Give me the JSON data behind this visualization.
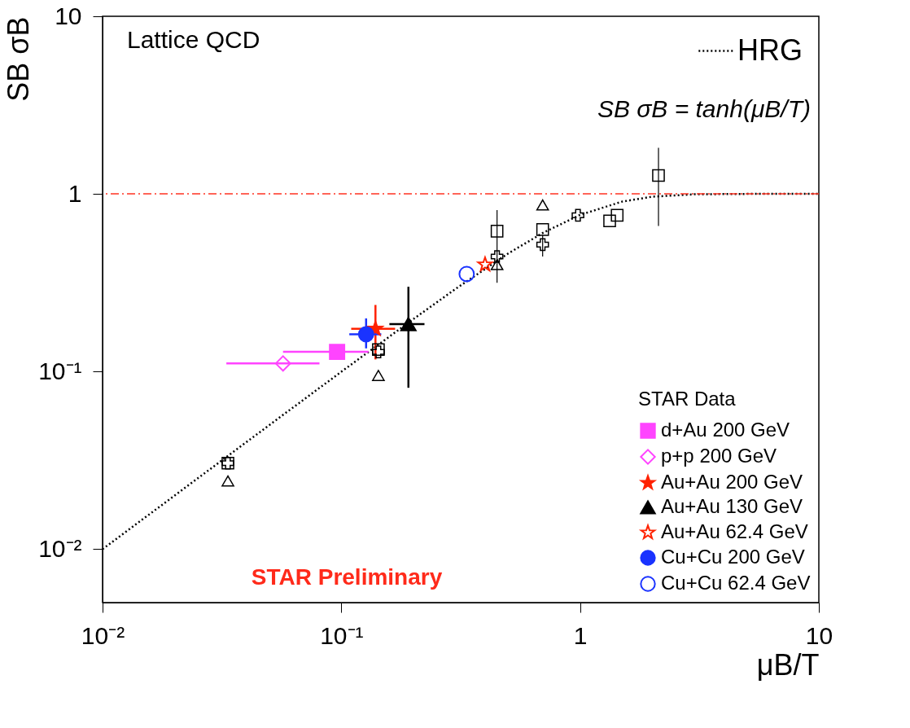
{
  "chart_data": {
    "type": "scatter",
    "xlabel": "μB/T",
    "ylabel": "SB σB",
    "legend_title": "STAR Data",
    "legend": "bottom right",
    "log": "xy",
    "grid": false,
    "xlim": [
      0.01,
      10
    ],
    "ylim": [
      0.005,
      10
    ],
    "xticks": [
      {
        "value": 0.01,
        "label": "10⁻²"
      },
      {
        "value": 0.1,
        "label": "10⁻¹"
      },
      1,
      10
    ],
    "yticks": [
      {
        "value": 0.01,
        "label": "10⁻²"
      },
      {
        "value": 0.1,
        "label": "10⁻¹"
      },
      1,
      10
    ],
    "annotations": [
      "Lattice QCD",
      "SB σB = tanh(μB/T)",
      "STAR Preliminary"
    ],
    "ref_lines": [
      {
        "axis": "y",
        "value": 1,
        "color": "#ff3322",
        "line_style": "dashed"
      }
    ],
    "series": [
      {
        "name": "HRG",
        "type": "line",
        "color": "#000000",
        "line_style": "dotted",
        "marker": "none",
        "x": [
          0.01,
          0.02,
          0.05,
          0.1,
          0.2,
          0.3,
          0.5,
          0.7,
          1,
          1.5,
          2,
          3,
          5,
          10
        ],
        "values": [
          0.01,
          0.02,
          0.05,
          0.0997,
          0.197,
          0.291,
          0.462,
          0.604,
          0.762,
          0.905,
          0.964,
          0.995,
          1.0,
          1.0
        ]
      },
      {
        "color": "#000000",
        "marker": "cross",
        "x": [
          0.0335,
          0.143,
          0.449,
          0.697,
          0.98
        ],
        "values": [
          0.0305,
          0.129,
          0.444,
          0.518,
          0.758
        ],
        "errors": [
          null,
          null,
          null,
          [
            0.444,
            0.586
          ],
          null
        ]
      },
      {
        "color": "#000000",
        "marker": "square",
        "x": [
          0.0335,
          0.143,
          0.449,
          0.697,
          1.33,
          1.43,
          2.13
        ],
        "values": [
          0.0305,
          0.133,
          0.617,
          0.63,
          0.705,
          0.758,
          1.27
        ],
        "errors": [
          null,
          null,
          [
            0.316,
            0.81
          ],
          null,
          null,
          null,
          [
            0.66,
            1.82
          ]
        ]
      },
      {
        "color": "#000000",
        "marker": "triangle",
        "x": [
          0.0335,
          0.143,
          0.449,
          0.697
        ],
        "values": [
          0.0242,
          0.095,
          0.4,
          0.866
        ]
      },
      {
        "name": "d+Au 200 GeV",
        "color": "#ff44ff",
        "marker": "square",
        "x": [
          0.096
        ],
        "values": [
          0.129
        ],
        "xerrors": [
          [
            0.057,
            0.13
          ]
        ]
      },
      {
        "name": "p+p 200 GeV",
        "color": "#ff44ff",
        "marker": "diamond",
        "x": [
          0.057
        ],
        "values": [
          0.111
        ],
        "xerrors": [
          [
            0.033,
            0.081
          ]
        ]
      },
      {
        "name": "Au+Au 200 GeV",
        "color": "#ff2200",
        "marker": "star",
        "x": [
          0.139
        ],
        "values": [
          0.174
        ],
        "errors": [
          [
            0.117,
            0.237
          ]
        ],
        "xerrors": [
          [
            0.11,
            0.168
          ]
        ]
      },
      {
        "name": "Au+Au 130 GeV",
        "color": "#000000",
        "marker": "triangle",
        "x": [
          0.191
        ],
        "values": [
          0.185
        ],
        "errors": [
          [
            0.081,
            0.3
          ]
        ],
        "xerrors": [
          [
            0.159,
            0.223
          ]
        ]
      },
      {
        "name": "Au+Au 62.4 GeV",
        "color": "#ff2200",
        "marker": "star",
        "x": [
          0.4
        ],
        "values": [
          0.4
        ]
      },
      {
        "name": "Cu+Cu 200 GeV",
        "color": "#1a33ff",
        "marker": "circle",
        "x": [
          0.127
        ],
        "values": [
          0.162
        ],
        "errors": [
          [
            0.135,
            0.199
          ]
        ],
        "xerrors": [
          [
            0.108,
            0.147
          ]
        ]
      },
      {
        "name": "Cu+Cu 62.4 GeV",
        "color": "#1a33ff",
        "marker": "circle",
        "x": [
          0.335
        ],
        "values": [
          0.354
        ]
      }
    ]
  }
}
